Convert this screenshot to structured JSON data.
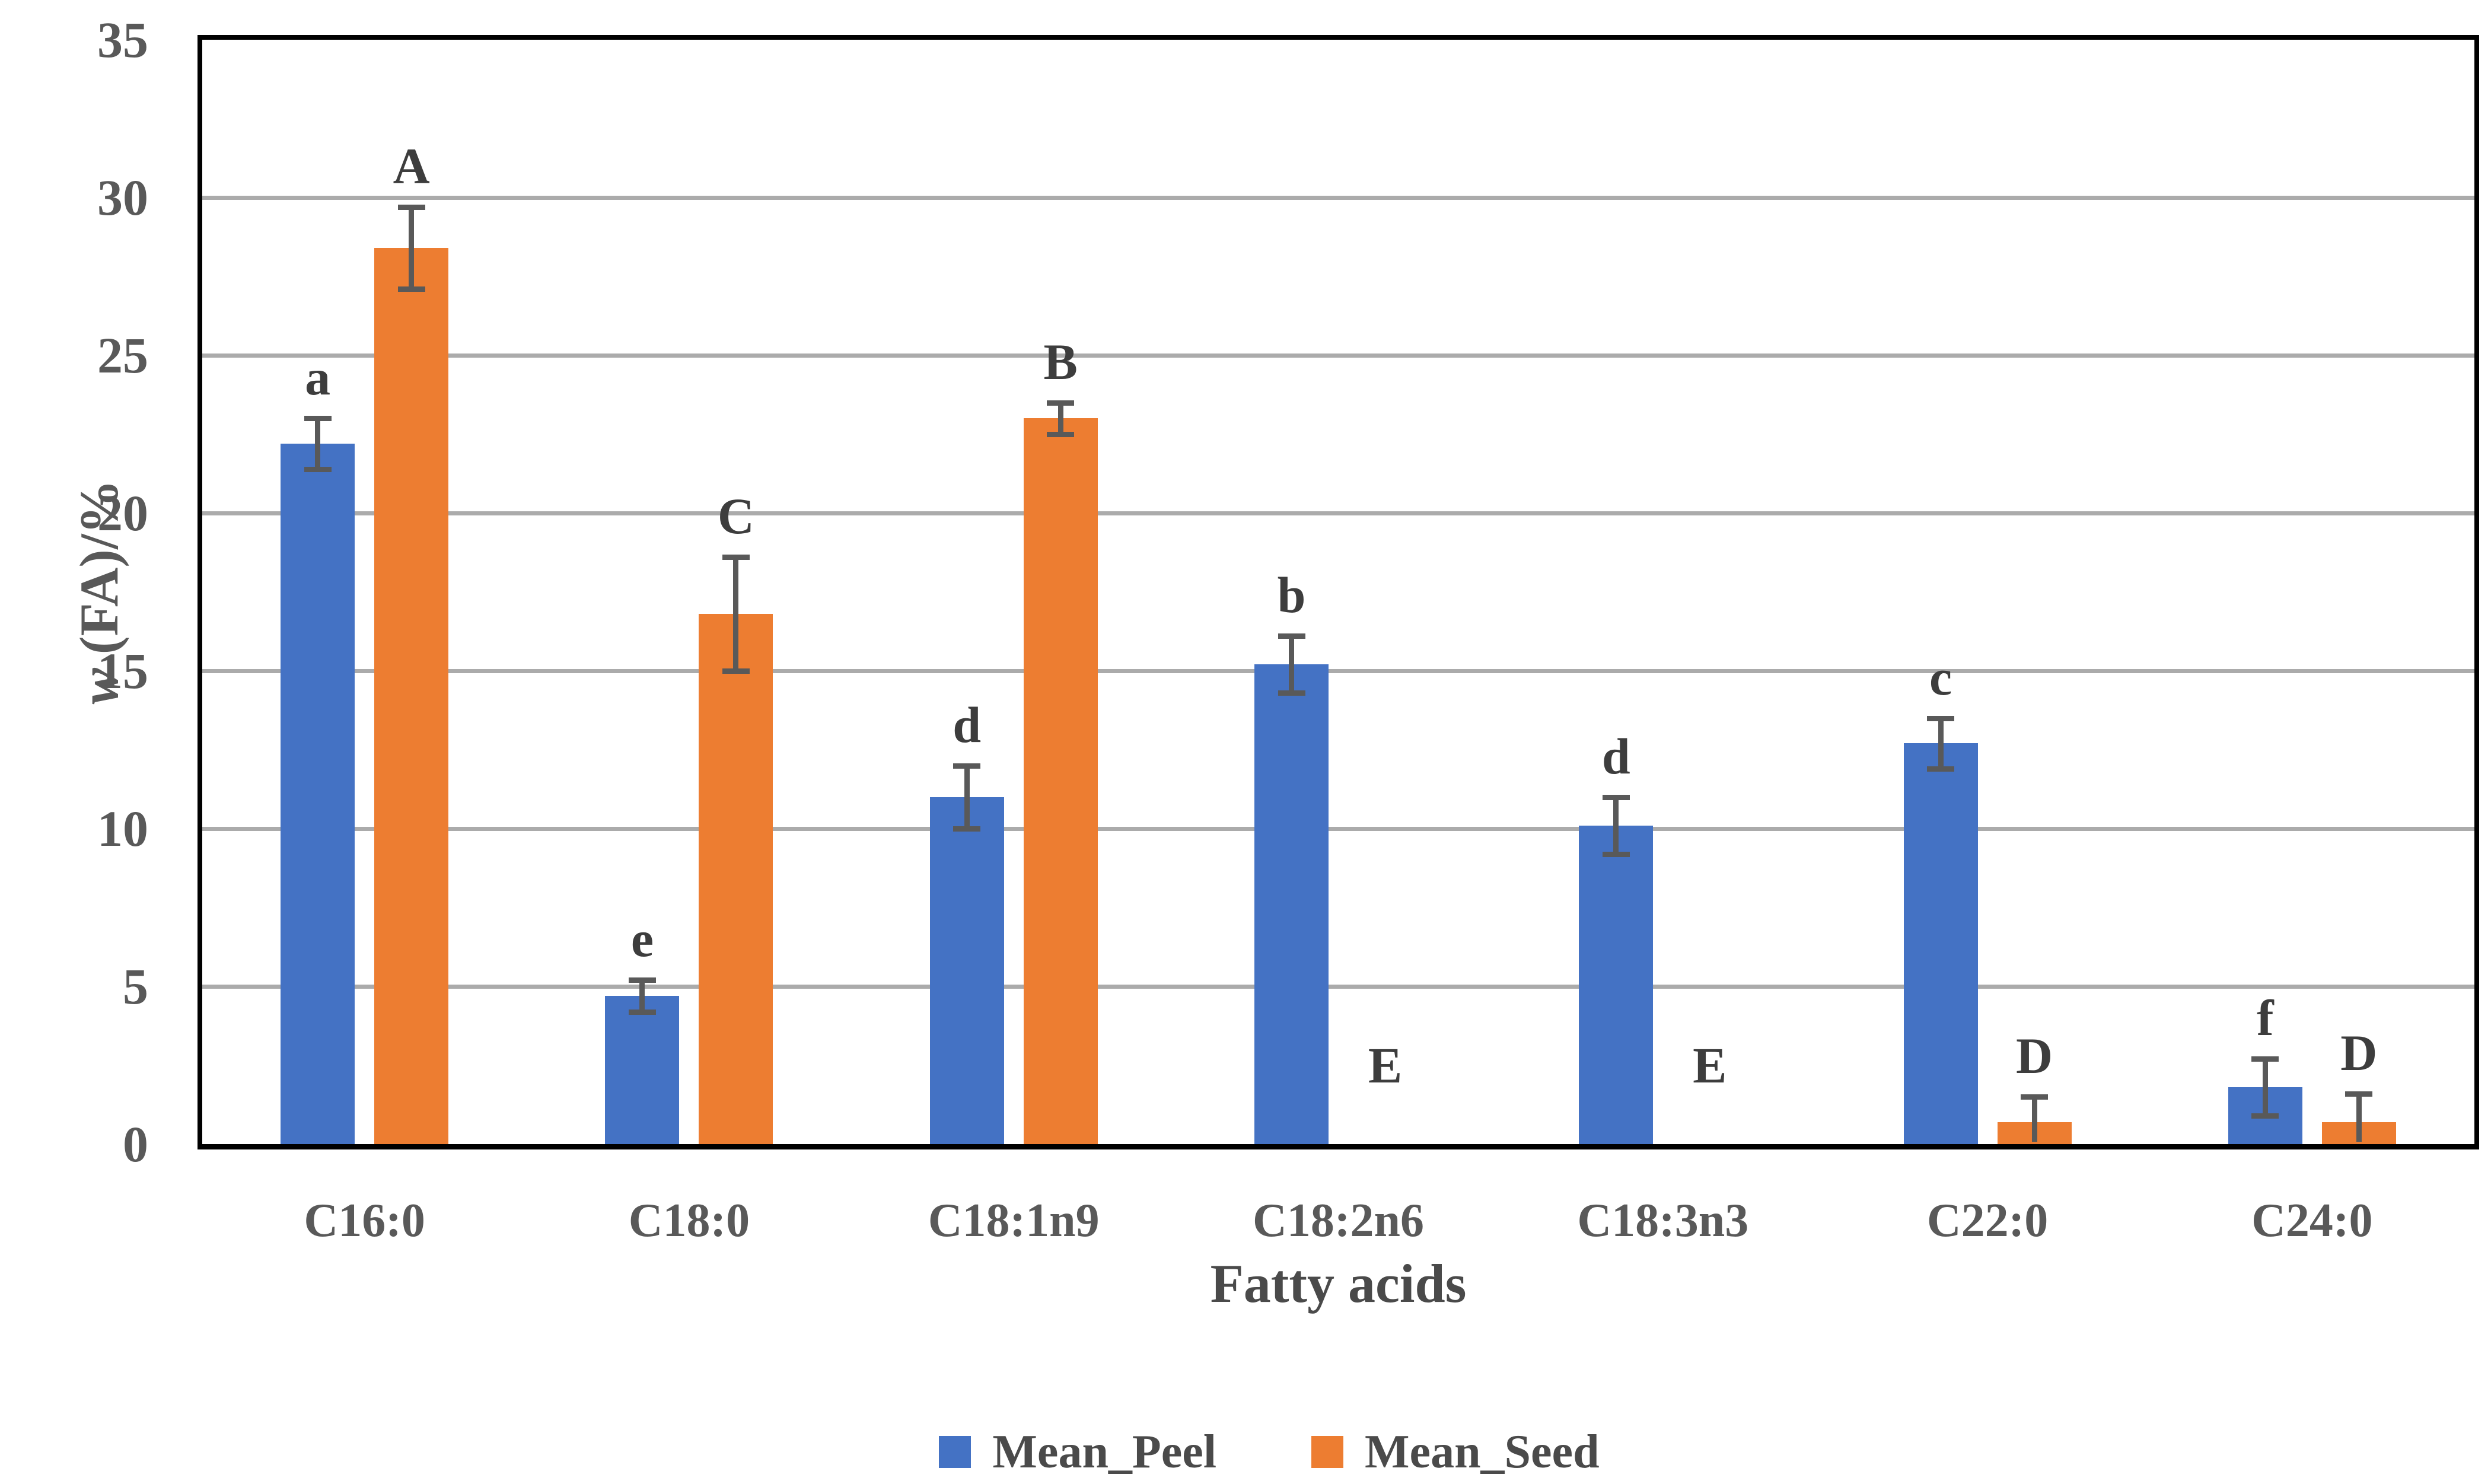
{
  "chart_data": {
    "type": "bar",
    "title": "",
    "xlabel": "Fatty acids",
    "ylabel_italic": "w",
    "ylabel_rest": " (FA)/%",
    "ylim": [
      0,
      35
    ],
    "ytick_step": 5,
    "yticks": [
      0,
      5,
      10,
      15,
      20,
      25,
      30,
      35
    ],
    "grid": true,
    "legend_position": "bottom-center",
    "categories": [
      "C16:0",
      "C18:0",
      "C18:1n9",
      "C18:2n6",
      "C18:3n3",
      "C22:0",
      "C24:0"
    ],
    "series": [
      {
        "name": "Mean_Peel",
        "color": "#4472C4",
        "values": [
          22.2,
          4.7,
          11.0,
          15.2,
          10.1,
          12.7,
          1.8
        ],
        "errors": [
          0.8,
          0.5,
          1.0,
          0.9,
          0.9,
          0.8,
          0.9
        ],
        "letters": [
          "a",
          "e",
          "d",
          "b",
          "d",
          "c",
          "f"
        ]
      },
      {
        "name": "Mean_Seed",
        "color": "#ED7D31",
        "values": [
          28.4,
          16.8,
          23.0,
          0,
          0,
          0.7,
          0.7
        ],
        "errors": [
          1.3,
          1.8,
          0.5,
          0,
          0,
          0.8,
          0.9
        ],
        "letters": [
          "A",
          "C",
          "B",
          "E",
          "E",
          "D",
          "D"
        ]
      }
    ]
  },
  "colors": {
    "peel": "#4472C4",
    "seed": "#ED7D31",
    "error_bar": "#595959",
    "gridline": "#ABABAB",
    "axis_border": "#000000",
    "tick_text": "#595959",
    "letter_text": "#3D3D3D",
    "background": "#FFFFFF"
  }
}
